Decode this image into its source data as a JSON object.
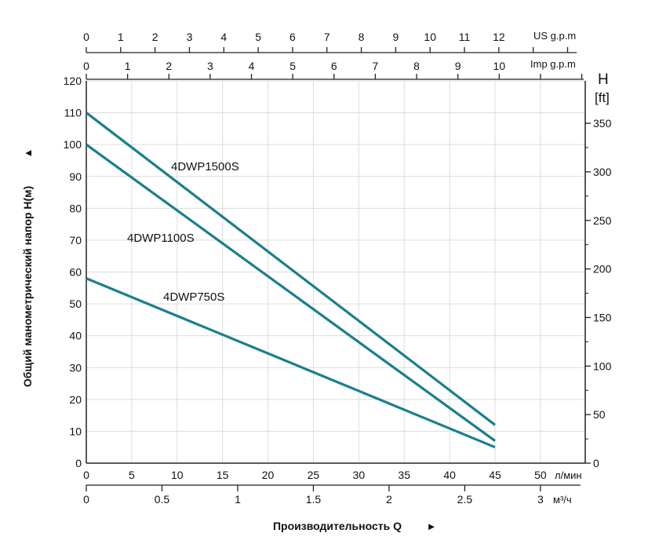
{
  "chart_data": {
    "type": "line",
    "xlabel": "Производительность Q",
    "xlabel_arrow": "►",
    "ylabel": "Общий манометрический напор H(м)",
    "ylabel_arrow": "▲",
    "x_unit": "л/мин",
    "xlim": [
      0,
      55
    ],
    "ylim": [
      0,
      120
    ],
    "x_ticks": [
      0,
      5,
      10,
      15,
      20,
      25,
      30,
      35,
      40,
      45,
      50
    ],
    "y_ticks": [
      0,
      10,
      20,
      30,
      40,
      50,
      60,
      70,
      80,
      90,
      100,
      110,
      120
    ],
    "grid": true,
    "secondary_axes": {
      "m3h": {
        "unit": "м³/ч",
        "ticks": [
          "0",
          "0.5",
          "1",
          "1.5",
          "2",
          "2.5",
          "3"
        ]
      },
      "us_gpm": {
        "unit": "US g.p.m",
        "ticks": [
          "0",
          "1",
          "2",
          "3",
          "4",
          "5",
          "6",
          "7",
          "8",
          "9",
          "10",
          "11",
          "12"
        ]
      },
      "imp_gpm": {
        "unit": "Imp g.p.m",
        "ticks": [
          "0",
          "1",
          "2",
          "3",
          "4",
          "5",
          "6",
          "7",
          "8",
          "9",
          "10"
        ]
      },
      "ft": {
        "unit_top": "H",
        "unit": "[ft]",
        "ticks": [
          "0",
          "50",
          "100",
          "150",
          "200",
          "250",
          "300",
          "350"
        ]
      }
    },
    "series": [
      {
        "name": "4DWP1500S",
        "x": [
          0,
          45
        ],
        "y": [
          110,
          12
        ]
      },
      {
        "name": "4DWP1100S",
        "x": [
          0,
          45
        ],
        "y": [
          100,
          7
        ]
      },
      {
        "name": "4DWP750S",
        "x": [
          0,
          45
        ],
        "y": [
          58,
          5
        ]
      }
    ],
    "colors": {
      "line": "#1b7f8c",
      "grid": "#dcdcdc",
      "axis": "#222222"
    }
  }
}
